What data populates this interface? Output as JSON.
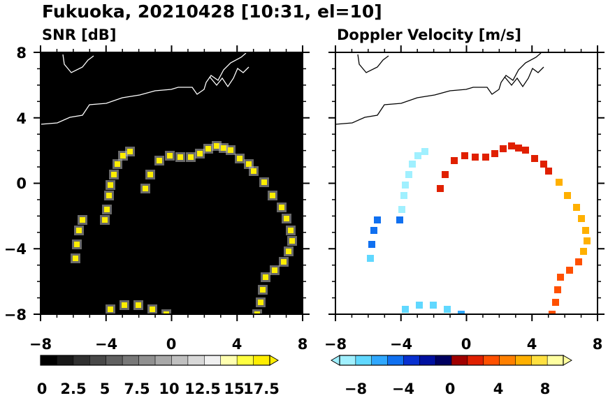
{
  "figure": {
    "title": "Fukuoka, 20210428 [10:31, el=10]"
  },
  "chart_data": [
    {
      "type": "heatmap",
      "title": "SNR [dB]",
      "xlim": [
        -8,
        8
      ],
      "ylim": [
        -8,
        8
      ],
      "xticks": [
        "−8",
        "−4",
        "0",
        "4",
        "8"
      ],
      "yticks": [
        "8",
        "4",
        "0",
        "−4",
        "−8"
      ],
      "xtick_values": [
        -8,
        -4,
        0,
        4,
        8
      ],
      "ytick_values": [
        8,
        4,
        0,
        -4,
        -8
      ],
      "background_color": "#000000",
      "colorbar": {
        "range": [
          0,
          18.5
        ],
        "extend": "max",
        "tick_labels": [
          "0",
          "2.5",
          "5",
          "7.5",
          "10",
          "12.5",
          "15",
          "17.5"
        ],
        "tick_values": [
          0,
          2.5,
          5,
          7.5,
          10,
          12.5,
          15,
          17.5
        ],
        "colors": [
          "#000000",
          "#181818",
          "#303030",
          "#484848",
          "#606060",
          "#787878",
          "#909090",
          "#a8a8a8",
          "#c0c0c0",
          "#d8d8d8",
          "#f0f0f0",
          "#ffffb0",
          "#ffff40",
          "#ffee00"
        ]
      },
      "echo_ring": {
        "shape": "irregular ring of clutter echoes",
        "center": [
          0,
          0
        ],
        "approx_radius_km": [
          4.5,
          6.5
        ],
        "max_value": 18.5
      }
    },
    {
      "type": "heatmap",
      "title": "Doppler Velocity [m/s]",
      "xlim": [
        -8,
        8
      ],
      "ylim": [
        -8,
        8
      ],
      "xticks": [
        "−8",
        "−4",
        "0",
        "4",
        "8"
      ],
      "yticks": [
        "8",
        "4",
        "0",
        "−4",
        "−8"
      ],
      "xtick_values": [
        -8,
        -4,
        0,
        4,
        8
      ],
      "ytick_values": [
        8,
        4,
        0,
        -4,
        -8
      ],
      "background_color": "#ffffff",
      "colorbar": {
        "range": [
          -10,
          10
        ],
        "extend": "both",
        "tick_labels": [
          "−8",
          "−4",
          "0",
          "4",
          "8"
        ],
        "tick_values": [
          -8,
          -4,
          0,
          4,
          8
        ],
        "colors": [
          "#a0f0ff",
          "#60d8ff",
          "#30a8ff",
          "#1070f0",
          "#0830d0",
          "#0010a0",
          "#000060",
          "#a00000",
          "#e02000",
          "#ff5000",
          "#ff8000",
          "#ffb000",
          "#ffe040",
          "#ffffa0"
        ]
      },
      "segments": [
        {
          "location": "north-east",
          "velocity": 2
        },
        {
          "location": "east",
          "velocity": 7
        },
        {
          "location": "south-east",
          "velocity": 4
        },
        {
          "location": "south",
          "velocity": -6
        },
        {
          "location": "south-west",
          "velocity": -8
        },
        {
          "location": "west",
          "velocity": -5
        },
        {
          "location": "north-west",
          "velocity": -9
        }
      ]
    }
  ]
}
